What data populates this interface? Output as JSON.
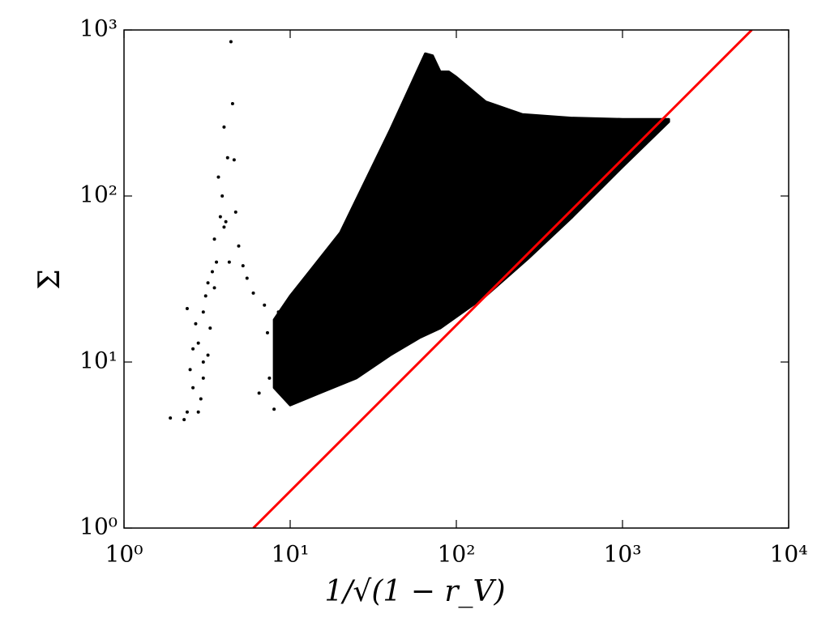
{
  "chart_data": {
    "type": "scatter",
    "x_label": "1/√(1 − r_V)",
    "y_label": "Σ",
    "log_x": true,
    "log_y": true,
    "xlim": [
      1,
      10000
    ],
    "xticks": [
      {
        "value": 1,
        "label": "10⁰"
      },
      {
        "value": 10,
        "label": "10¹"
      },
      {
        "value": 100,
        "label": "10²"
      },
      {
        "value": 1000,
        "label": "10³"
      },
      {
        "value": 10000,
        "label": "10⁴"
      }
    ],
    "ylim": [
      1,
      1000
    ],
    "yticks": [
      {
        "value": 1,
        "label": "10⁰"
      },
      {
        "value": 10,
        "label": "10¹"
      },
      {
        "value": 100,
        "label": "10²"
      },
      {
        "value": 1000,
        "label": "10³"
      }
    ],
    "series": [
      {
        "style": "points",
        "color": "#000000",
        "x": [
          1.9,
          2.3,
          2.4,
          2.5,
          2.6,
          2.8,
          2.8,
          2.9,
          3.0,
          3.0,
          3.1,
          3.2,
          3.3,
          3.4,
          3.5,
          3.6,
          3.7,
          3.8,
          3.9,
          4.0,
          4.1,
          4.2,
          4.3,
          4.4,
          4.5,
          4.6,
          4.7,
          4.9,
          5.2,
          5.5,
          6.0,
          6.5,
          7.0,
          7.3,
          7.5,
          8.0,
          8.5,
          9.0,
          2.4,
          2.7,
          3.2,
          3.5,
          4.0,
          3.0,
          2.6
        ],
        "values": [
          4.6,
          4.5,
          21,
          9,
          7,
          5,
          13,
          6,
          10,
          20,
          25,
          30,
          16,
          35,
          55,
          40,
          130,
          75,
          100,
          260,
          70,
          170,
          40,
          850,
          360,
          165,
          80,
          50,
          38,
          32,
          26,
          6.5,
          22,
          15,
          8,
          5.2,
          20,
          11,
          5,
          17,
          11,
          28,
          65,
          8,
          12
        ]
      },
      {
        "style": "fill",
        "color": "#000000",
        "x": [
          8,
          10,
          20,
          40,
          65,
          72,
          80,
          90,
          100,
          150,
          250,
          500,
          1000,
          1900,
          1900,
          1000,
          500,
          270,
          150,
          80,
          60,
          40,
          25,
          15,
          10,
          8
        ],
        "values": [
          18,
          25,
          60,
          250,
          720,
          700,
          560,
          560,
          520,
          370,
          310,
          295,
          290,
          290,
          280,
          150,
          75,
          42,
          25,
          16,
          14,
          11,
          8,
          6.5,
          5.5,
          7
        ]
      },
      {
        "style": "line",
        "color": "#ff0000",
        "x": [
          6,
          6000
        ],
        "values": [
          1,
          1000
        ]
      }
    ]
  }
}
